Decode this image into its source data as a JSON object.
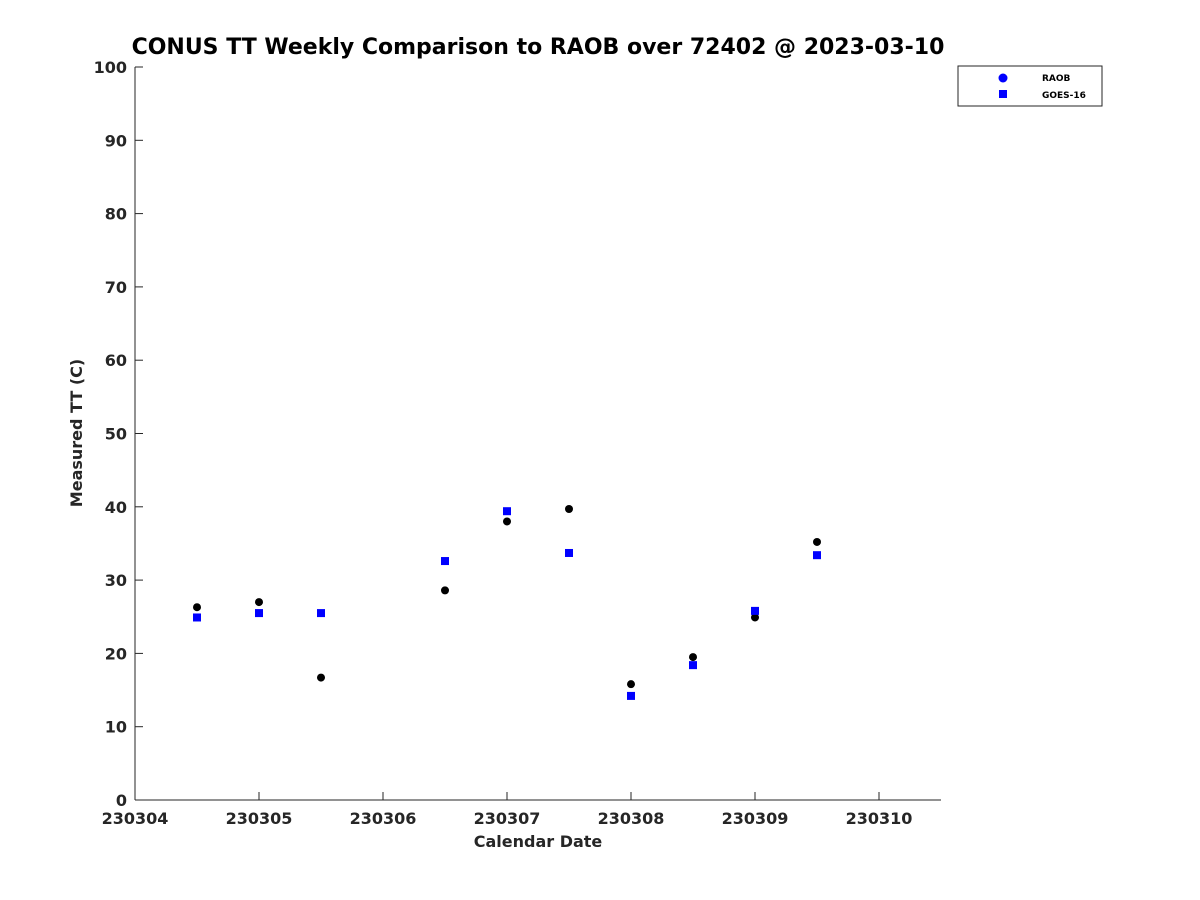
{
  "chart_data": {
    "type": "scatter",
    "title": "CONUS TT Weekly Comparison to RAOB over 72402 @ 2023-03-10",
    "xlabel": "Calendar Date",
    "ylabel": "Measured TT (C)",
    "x_ticks": [
      "230304",
      "230305",
      "230306",
      "230307",
      "230308",
      "230309",
      "230310"
    ],
    "xlim": [
      230304,
      230310.5
    ],
    "ylim": [
      0,
      100
    ],
    "y_ticks": [
      0,
      10,
      20,
      30,
      40,
      50,
      60,
      70,
      80,
      90,
      100
    ],
    "grid": false,
    "legend_position": "top-right",
    "series": [
      {
        "name": "RAOB",
        "marker": "circle",
        "color": "#000000",
        "legend_color": "#0000ff",
        "x": [
          230304.5,
          230305,
          230305.5,
          230306.5,
          230307,
          230307.5,
          230308,
          230308.5,
          230309,
          230309.5
        ],
        "y": [
          26.3,
          27.0,
          16.7,
          28.6,
          38.0,
          39.7,
          15.8,
          19.5,
          24.9,
          35.2
        ]
      },
      {
        "name": "GOES-16",
        "marker": "square",
        "color": "#0000ff",
        "x": [
          230304.5,
          230305,
          230305.5,
          230306.5,
          230307,
          230307.5,
          230308,
          230308.5,
          230309,
          230309.5
        ],
        "y": [
          24.9,
          25.5,
          25.5,
          32.6,
          39.4,
          33.7,
          14.2,
          18.4,
          25.8,
          33.4
        ]
      }
    ]
  }
}
